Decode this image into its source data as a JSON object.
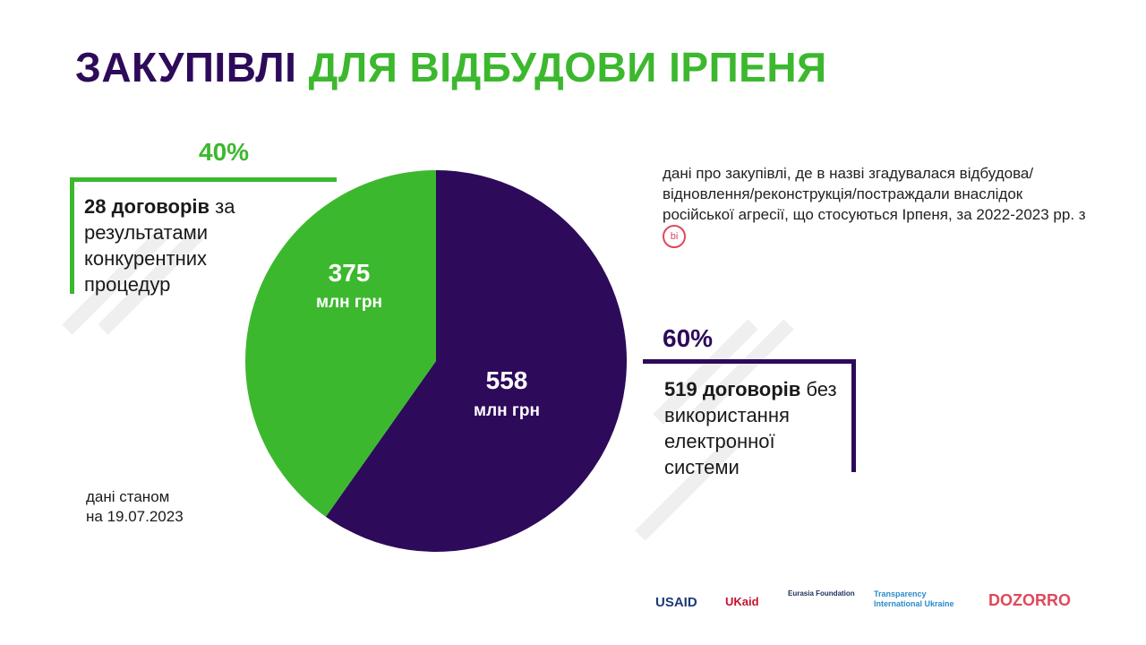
{
  "title": {
    "part1": "ЗАКУПІВЛІ",
    "part2": "ДЛЯ ВІДБУДОВИ ІРПЕНЯ"
  },
  "colors": {
    "competitive": "#3cb82e",
    "non_electronic": "#2d0a5a"
  },
  "chart_data": {
    "type": "pie",
    "title": "ЗАКУПІВЛІ ДЛЯ ВІДБУДОВИ ІРПЕНЯ",
    "slices": [
      {
        "label": "28 договорів за результатами конкурентних процедур",
        "value": 375,
        "value_label": "375",
        "unit": "млн грн",
        "percent": "40%",
        "count_bold": "28 договорів",
        "count_rest": " за результатами конкурентних процедур"
      },
      {
        "label": "519 договорів без використання електронної системи",
        "value": 558,
        "value_label": "558",
        "unit": "млн грн",
        "percent": "60%",
        "count_bold": "519 договорів",
        "count_rest": " без використання електронної системи"
      }
    ]
  },
  "note": "дані про закупівлі, де в назві згадувалася відбудова/ відновлення/реконструкція/постраждали внаслідок російської агресії, що стосуються Ірпеня, за 2022-2023 рр. з",
  "note_logo": "bi",
  "as_of": {
    "line1": "дані станом",
    "line2": "на 19.07.2023"
  },
  "logos": [
    "USAID",
    "UKaid",
    "Eurasia Foundation",
    "Transparency International Ukraine",
    "DOZORRO"
  ]
}
